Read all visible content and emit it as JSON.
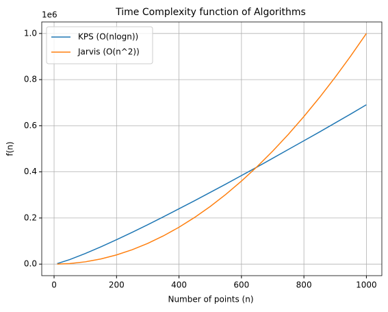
{
  "chart_data": {
    "type": "line",
    "title": "Time Complexity function of Algorithms",
    "x_label": "Number of points (n)",
    "y_label": "f(n)",
    "y_offset_label": "1e6",
    "x": [
      10,
      50,
      100,
      150,
      200,
      250,
      300,
      350,
      400,
      450,
      500,
      550,
      600,
      650,
      700,
      750,
      800,
      850,
      900,
      950,
      1000
    ],
    "series": [
      {
        "name": "KPS (O(nlogn))",
        "color": "#1f77b4",
        "values": [
          0.0023,
          0.0196,
          0.0461,
          0.0752,
          0.106,
          0.138,
          0.171,
          0.205,
          0.24,
          0.275,
          0.311,
          0.347,
          0.384,
          0.421,
          0.459,
          0.497,
          0.535,
          0.573,
          0.612,
          0.651,
          0.691
        ]
      },
      {
        "name": "Jarvis (O(n^2))",
        "color": "#ff7f0e",
        "values": [
          0.0001,
          0.0025,
          0.01,
          0.0225,
          0.04,
          0.0625,
          0.09,
          0.1225,
          0.16,
          0.2025,
          0.25,
          0.3025,
          0.36,
          0.4225,
          0.49,
          0.5625,
          0.64,
          0.7225,
          0.81,
          0.9025,
          1.0
        ]
      }
    ],
    "xlim": [
      -39.5,
      1049.5
    ],
    "xticks": [
      0,
      200,
      400,
      600,
      800,
      1000
    ],
    "ylim": [
      -0.05,
      1.05
    ],
    "yticks": [
      {
        "value": 0,
        "label": "0.0"
      },
      0.2,
      0.4,
      0.6,
      0.8,
      {
        "value": 1,
        "label": "1.0"
      }
    ],
    "grid": true,
    "legend": "upper-left"
  }
}
